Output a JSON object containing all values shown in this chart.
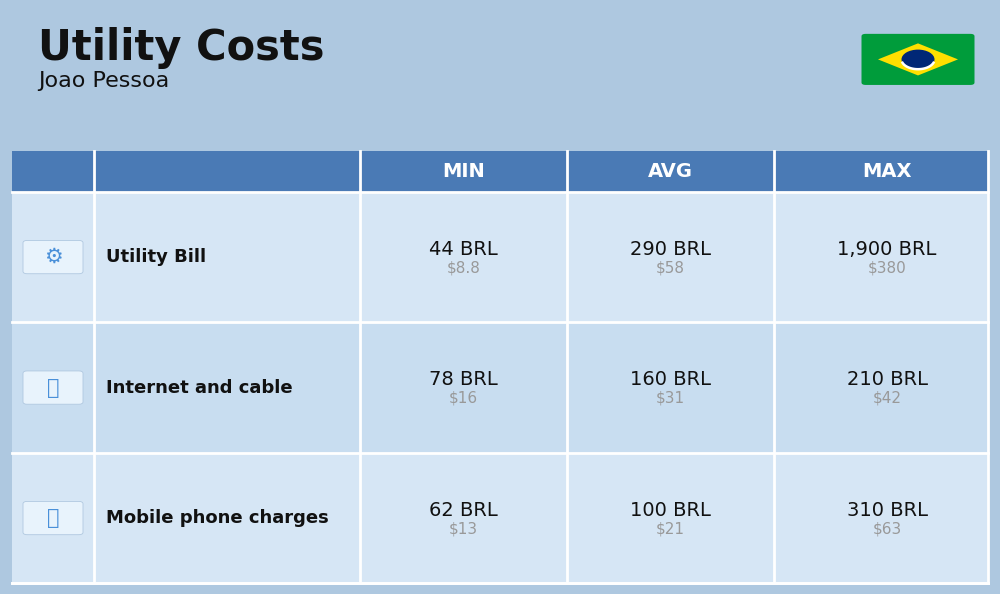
{
  "title": "Utility Costs",
  "subtitle": "Joao Pessoa",
  "background_color": "#aec8e0",
  "header_bg_color": "#4a7ab5",
  "header_text_color": "#ffffff",
  "row_bg_color_1": "#d6e6f5",
  "row_bg_color_2": "#c8ddf0",
  "rows": [
    {
      "label": "Utility Bill",
      "min_brl": "44 BRL",
      "min_usd": "$8.8",
      "avg_brl": "290 BRL",
      "avg_usd": "$58",
      "max_brl": "1,900 BRL",
      "max_usd": "$380"
    },
    {
      "label": "Internet and cable",
      "min_brl": "78 BRL",
      "min_usd": "$16",
      "avg_brl": "160 BRL",
      "avg_usd": "$31",
      "max_brl": "210 BRL",
      "max_usd": "$42"
    },
    {
      "label": "Mobile phone charges",
      "min_brl": "62 BRL",
      "min_usd": "$13",
      "avg_brl": "100 BRL",
      "avg_usd": "$21",
      "max_brl": "310 BRL",
      "max_usd": "$63"
    }
  ],
  "title_fontsize": 30,
  "subtitle_fontsize": 16,
  "header_fontsize": 14,
  "label_fontsize": 13,
  "value_fontsize": 14,
  "usd_fontsize": 11,
  "text_color_main": "#111111",
  "text_color_usd": "#999999",
  "flag_green": "#009c3b",
  "flag_yellow": "#ffdf00",
  "flag_blue": "#002776"
}
